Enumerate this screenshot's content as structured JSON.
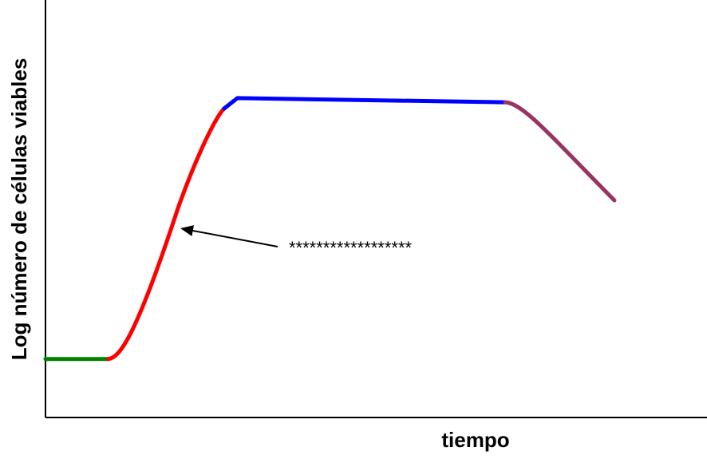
{
  "chart_data": {
    "type": "line",
    "title": "",
    "xlabel": "tiempo",
    "ylabel": "Log número de células viables",
    "grid": false,
    "x_ticks": false,
    "y_ticks": false,
    "series": [
      {
        "color": "#008000",
        "shape": "linear",
        "points": [
          [
            0.0,
            0.14
          ],
          [
            0.095,
            0.14
          ]
        ]
      },
      {
        "color": "#ff0000",
        "shape": "sigmoid",
        "points": [
          [
            0.095,
            0.14
          ],
          [
            0.2,
            0.5
          ],
          [
            0.27,
            0.74
          ]
        ]
      },
      {
        "color": "#0000ff",
        "shape": "linear",
        "points": [
          [
            0.27,
            0.74
          ],
          [
            0.29,
            0.765
          ],
          [
            0.695,
            0.755
          ]
        ]
      },
      {
        "color": "#993366",
        "shape": "curve",
        "points": [
          [
            0.695,
            0.755
          ],
          [
            0.86,
            0.52
          ]
        ]
      }
    ],
    "annotation": {
      "text": "******************",
      "points_to_x": 0.21
    }
  }
}
